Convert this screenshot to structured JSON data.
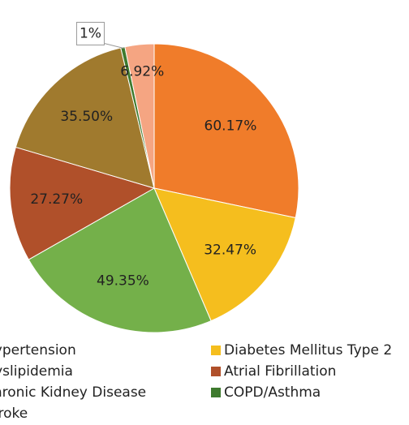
{
  "chart_data": {
    "type": "pie",
    "categories": [
      "Hypertension",
      "Diabetes Mellitus Type 2",
      "Dyslipidemia",
      "Atrial Fibrillation",
      "Chronic Kidney Disease",
      "COPD/Asthma",
      "Stroke"
    ],
    "values": [
      60.17,
      32.47,
      49.35,
      27.27,
      35.5,
      1,
      6.92
    ],
    "value_labels": [
      "60.17%",
      "32.47%",
      "49.35%",
      "27.27%",
      "35.50%",
      "1%",
      "6.92%"
    ],
    "colors": [
      "#f07c2a",
      "#f5be1e",
      "#74b04a",
      "#b0502a",
      "#a07a2e",
      "#3e7a2e",
      "#f5a582"
    ]
  }
}
